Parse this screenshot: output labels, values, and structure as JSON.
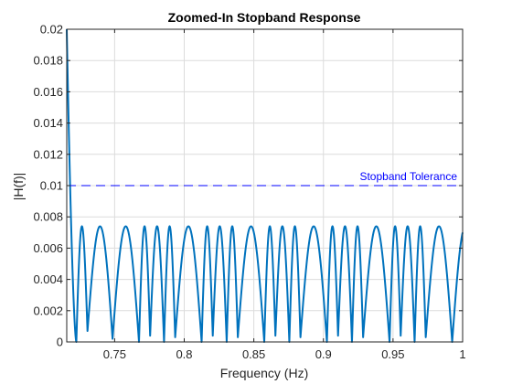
{
  "chart_data": {
    "type": "line",
    "title": "Zoomed-In Stopband Response",
    "xlabel": "Frequency (Hz)",
    "ylabel": "|H(f)|",
    "xlim": [
      0.7156,
      1.0
    ],
    "ylim": [
      0,
      0.02
    ],
    "xticks": [
      0.75,
      0.8,
      0.85,
      0.9,
      0.95,
      1.0
    ],
    "xtick_labels": [
      "0.75",
      "0.8",
      "0.85",
      "0.9",
      "0.95",
      "1"
    ],
    "yticks": [
      0,
      0.002,
      0.004,
      0.006,
      0.008,
      0.01,
      0.012,
      0.014,
      0.016,
      0.018,
      0.02
    ],
    "ytick_labels": [
      "0",
      "0.002",
      "0.004",
      "0.006",
      "0.008",
      "0.01",
      "0.012",
      "0.014",
      "0.016",
      "0.018",
      "0.02"
    ],
    "grid": true,
    "series": [
      {
        "color": "#0072BD",
        "zeros": [
          0.7225,
          0.7675,
          0.7855,
          0.8125,
          0.8305,
          0.8575,
          0.8755,
          0.9025,
          0.9205,
          0.9475,
          0.9655,
          0.9925
        ],
        "ripple_peak": 0.0074,
        "shallow_minima": [
          {
            "x": 0.7305,
            "y": 0.0007
          },
          {
            "x": 0.7485,
            "y": 0.0002
          },
          {
            "x": 0.7755,
            "y": 0.0004
          },
          {
            "x": 0.7935,
            "y": 0.0003
          },
          {
            "x": 0.8205,
            "y": 0.0004
          },
          {
            "x": 0.8385,
            "y": 0.0003
          },
          {
            "x": 0.8655,
            "y": 0.0004
          },
          {
            "x": 0.8835,
            "y": 0.0003
          },
          {
            "x": 0.9105,
            "y": 0.0004
          },
          {
            "x": 0.9285,
            "y": 0.0003
          },
          {
            "x": 0.9555,
            "y": 0.0004
          },
          {
            "x": 0.9735,
            "y": 0.0003
          }
        ],
        "start_value": 0.02
      }
    ],
    "reference_line": {
      "y": 0.01,
      "style": "dashed",
      "color": "#0000FF",
      "label": "Stopband Tolerance"
    }
  }
}
